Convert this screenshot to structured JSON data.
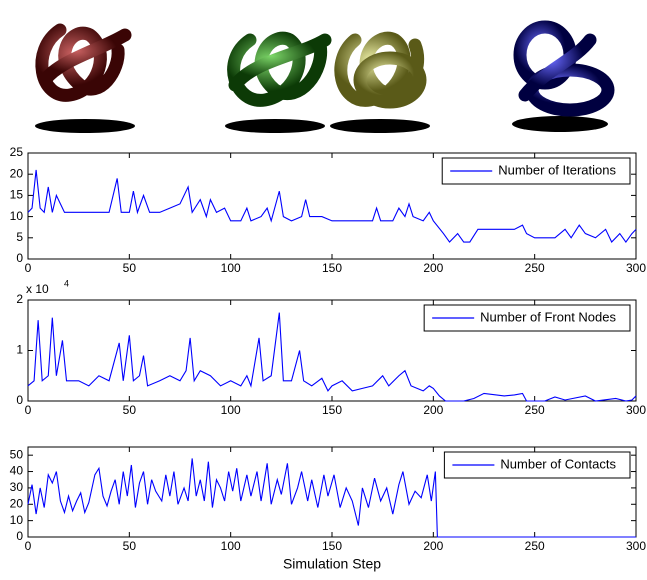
{
  "chart_data": [
    {
      "type": "line",
      "xlim": [
        0,
        300
      ],
      "xticks": [
        0,
        50,
        100,
        150,
        200,
        250,
        300
      ],
      "ylim": [
        0,
        25
      ],
      "yticks": [
        0,
        5,
        10,
        15,
        20,
        25
      ],
      "legend": "top-right",
      "x": [
        0,
        2,
        4,
        6,
        8,
        10,
        12,
        14,
        16,
        18,
        25,
        30,
        35,
        40,
        44,
        46,
        50,
        52,
        54,
        57,
        60,
        65,
        70,
        75,
        79,
        81,
        85,
        88,
        90,
        93,
        97,
        100,
        105,
        108,
        110,
        115,
        118,
        120,
        124,
        126,
        130,
        135,
        137,
        139,
        145,
        150,
        160,
        170,
        172,
        174,
        180,
        183,
        186,
        188,
        190,
        195,
        198,
        200,
        205,
        208,
        212,
        215,
        218,
        222,
        230,
        240,
        244,
        246,
        250,
        255,
        260,
        265,
        268,
        272,
        275,
        280,
        285,
        288,
        292,
        295,
        298,
        300
      ],
      "series": [
        {
          "name": "Number of Iterations",
          "color": "#0000ff",
          "values": [
            11,
            12,
            21,
            12,
            11,
            17,
            11,
            15,
            13,
            11,
            11,
            11,
            11,
            11,
            19,
            11,
            11,
            16,
            11,
            15,
            11,
            11,
            12,
            13,
            17,
            11,
            14,
            10,
            14,
            11,
            12,
            9,
            9,
            12,
            9,
            10,
            12,
            9,
            16,
            10,
            9,
            10,
            14,
            10,
            10,
            9,
            9,
            9,
            12,
            9,
            9,
            12,
            10,
            13,
            10,
            9,
            11,
            9,
            6,
            4,
            6,
            4,
            4,
            7,
            7,
            7,
            8,
            6,
            5,
            5,
            5,
            7,
            5,
            8,
            6,
            5,
            7,
            4,
            6,
            4,
            6,
            7
          ]
        }
      ]
    },
    {
      "type": "line",
      "xlim": [
        0,
        300
      ],
      "xticks": [
        0,
        50,
        100,
        150,
        200,
        250,
        300
      ],
      "ylim": [
        0,
        2
      ],
      "yticks": [
        0,
        1,
        2
      ],
      "y_multiplier": "x 10",
      "y_multiplier_exponent": "4",
      "legend": "top-right",
      "x": [
        0,
        3,
        5,
        7,
        10,
        12,
        14,
        17,
        19,
        25,
        30,
        35,
        40,
        45,
        47,
        50,
        52,
        55,
        57,
        59,
        65,
        70,
        75,
        78,
        80,
        82,
        85,
        90,
        95,
        100,
        105,
        108,
        110,
        114,
        116,
        120,
        124,
        126,
        130,
        134,
        136,
        140,
        145,
        148,
        150,
        155,
        160,
        165,
        170,
        175,
        178,
        183,
        186,
        189,
        195,
        198,
        200,
        203,
        206,
        215,
        220,
        225,
        235,
        240,
        244,
        246,
        255,
        260,
        265,
        275,
        280,
        290,
        295,
        298,
        300
      ],
      "series": [
        {
          "name": "Number of Front Nodes",
          "color": "#0000ff",
          "values": [
            0.3,
            0.4,
            1.6,
            0.4,
            0.5,
            1.65,
            0.5,
            1.2,
            0.4,
            0.4,
            0.3,
            0.5,
            0.4,
            1.15,
            0.4,
            1.3,
            0.4,
            0.5,
            0.9,
            0.3,
            0.4,
            0.5,
            0.4,
            0.6,
            1.25,
            0.4,
            0.6,
            0.5,
            0.3,
            0.4,
            0.3,
            0.5,
            0.3,
            1.25,
            0.4,
            0.5,
            1.75,
            0.4,
            0.4,
            1.0,
            0.4,
            0.3,
            0.45,
            0.2,
            0.3,
            0.4,
            0.2,
            0.25,
            0.3,
            0.5,
            0.3,
            0.5,
            0.6,
            0.3,
            0.2,
            0.3,
            0.25,
            0.1,
            0,
            0,
            0.05,
            0.15,
            0.1,
            0.12,
            0.15,
            0,
            0,
            0.08,
            0.02,
            0.1,
            0,
            0.05,
            0,
            0.02,
            0.1
          ]
        }
      ]
    },
    {
      "type": "line",
      "xlim": [
        0,
        300
      ],
      "xticks": [
        0,
        50,
        100,
        150,
        200,
        250,
        300
      ],
      "ylim": [
        0,
        55
      ],
      "yticks": [
        0,
        10,
        20,
        30,
        40,
        50
      ],
      "legend": "top-right",
      "x_label": "Simulation Step",
      "x": [
        0,
        2,
        4,
        6,
        8,
        10,
        12,
        14,
        16,
        18,
        20,
        22,
        24,
        26,
        28,
        30,
        33,
        35,
        37,
        39,
        41,
        43,
        45,
        47,
        49,
        51,
        53,
        55,
        57,
        59,
        61,
        63,
        66,
        68,
        70,
        72,
        74,
        77,
        79,
        81,
        83,
        85,
        87,
        89,
        91,
        93,
        95,
        97,
        99,
        101,
        103,
        105,
        108,
        110,
        113,
        115,
        118,
        120,
        123,
        125,
        128,
        130,
        133,
        135,
        138,
        140,
        143,
        146,
        148,
        151,
        154,
        157,
        160,
        163,
        165,
        168,
        171,
        174,
        177,
        180,
        183,
        185,
        188,
        191,
        194,
        197,
        199,
        201,
        202,
        300
      ],
      "series": [
        {
          "name": "Number of Contacts",
          "color": "#0000ff",
          "values": [
            20,
            32,
            14,
            30,
            18,
            38,
            33,
            40,
            22,
            15,
            25,
            16,
            22,
            27,
            15,
            21,
            38,
            42,
            25,
            19,
            28,
            35,
            20,
            40,
            25,
            44,
            18,
            33,
            40,
            20,
            35,
            28,
            22,
            38,
            25,
            40,
            20,
            30,
            22,
            48,
            25,
            35,
            22,
            46,
            18,
            35,
            30,
            22,
            40,
            28,
            42,
            22,
            38,
            25,
            40,
            22,
            45,
            20,
            35,
            26,
            45,
            20,
            30,
            40,
            22,
            35,
            18,
            38,
            25,
            38,
            18,
            30,
            22,
            7,
            30,
            18,
            36,
            22,
            30,
            14,
            32,
            40,
            20,
            28,
            24,
            38,
            22,
            40,
            0,
            0
          ]
        }
      ]
    }
  ]
}
